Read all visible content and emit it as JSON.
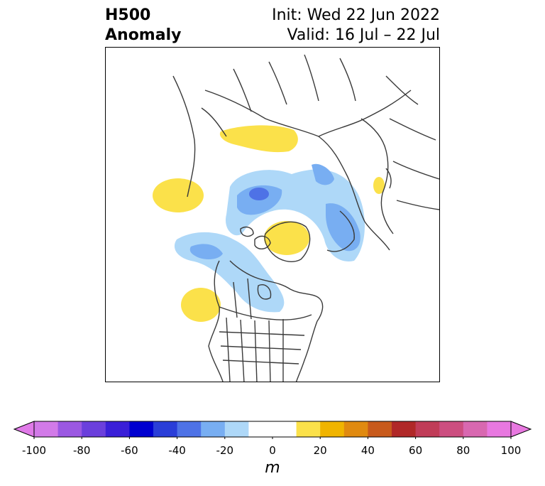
{
  "title": {
    "left_line1": "H500",
    "left_line2": "Anomaly",
    "right_line1": "Init: Wed 22 Jun 2022",
    "right_line2": "Valid: 16 Jul – 22 Jul"
  },
  "colorbar": {
    "units": "m",
    "ticks": [
      "-100",
      "-80",
      "-60",
      "-40",
      "-20",
      "0",
      "20",
      "40",
      "60",
      "80",
      "100"
    ],
    "tick_values": [
      -100,
      -80,
      -60,
      -40,
      -20,
      0,
      20,
      40,
      60,
      80,
      100
    ],
    "range": [
      -100,
      100
    ],
    "bin_width": 10,
    "extend": "both",
    "under_color": "#e07ae8",
    "over_color": "#e878e0",
    "bin_colors": [
      "#d27ae8",
      "#9b58e2",
      "#6b3fdc",
      "#3a1fd8",
      "#0000d0",
      "#2a3ed8",
      "#4e72e6",
      "#78aef2",
      "#aed8f8",
      "#ffffff",
      "#ffffff",
      "#fbe14a",
      "#f0b400",
      "#e08a10",
      "#c85a1c",
      "#b02828",
      "#c03c58",
      "#cc4e80",
      "#d868b0",
      "#e878e0"
    ]
  },
  "map": {
    "projection": "polar stereographic",
    "anomaly_colors": {
      "negative_light": "#aed8f8",
      "negative_medium": "#78aef2",
      "negative_strong": "#4e72e6",
      "positive_light": "#fbe14a",
      "outline": "#3a3a3a"
    }
  }
}
